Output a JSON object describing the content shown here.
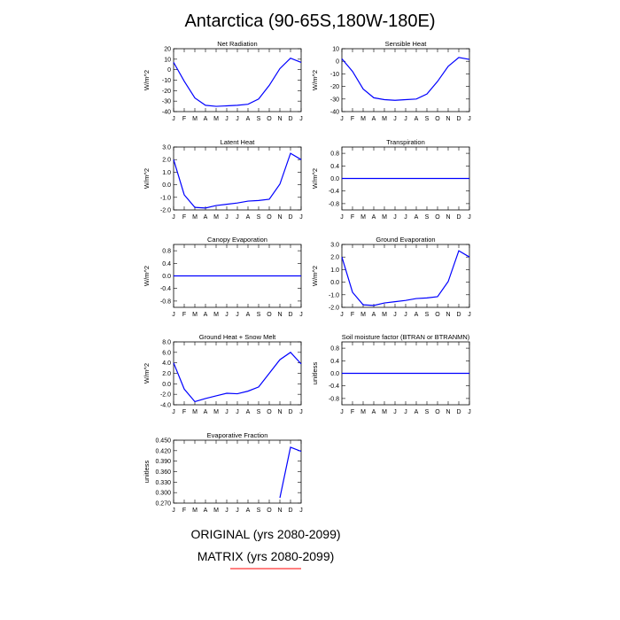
{
  "figure": {
    "title": "Antarctica (90-65S,180W-180E)",
    "legend": [
      {
        "label": "ORIGINAL (yrs 2080-2099)",
        "color": "#000000"
      },
      {
        "label": "MATRIX (yrs 2080-2099)",
        "color": "#ff0000"
      }
    ]
  },
  "months": [
    "J",
    "F",
    "M",
    "A",
    "M",
    "J",
    "J",
    "A",
    "S",
    "O",
    "N",
    "D",
    "J"
  ],
  "chart_data": [
    {
      "type": "line",
      "title": "Net Radiation",
      "ylabel": "W/m^2",
      "ylim": [
        -40,
        20
      ],
      "yticks": [
        20,
        10,
        0,
        -10,
        -20,
        -30,
        -40
      ],
      "yticklabels": [
        "20",
        "10",
        "0",
        "-10",
        "-20",
        "-30",
        "-40"
      ],
      "series": [
        {
          "color": "#0000ff",
          "values": [
            7,
            -11,
            -27,
            -34,
            -35,
            -34.5,
            -34,
            -33,
            -28,
            -15,
            1,
            11,
            7
          ]
        }
      ]
    },
    {
      "type": "line",
      "title": "Sensible Heat",
      "ylabel": "W/m^2",
      "ylim": [
        -40,
        10
      ],
      "yticks": [
        10,
        0,
        -10,
        -20,
        -30,
        -40
      ],
      "yticklabels": [
        "10",
        "0",
        "-10",
        "-20",
        "-30",
        "-40"
      ],
      "series": [
        {
          "color": "#0000ff",
          "values": [
            2,
            -8,
            -22,
            -29,
            -30.5,
            -31,
            -30.5,
            -30,
            -26,
            -16,
            -4,
            3,
            1.5
          ]
        }
      ]
    },
    {
      "type": "line",
      "title": "Latent Heat",
      "ylabel": "W/m^2",
      "ylim": [
        -2,
        3
      ],
      "yticks": [
        3,
        2,
        1,
        0,
        -1,
        -2
      ],
      "yticklabels": [
        "3.0",
        "2.0",
        "1.0",
        "0.0",
        "-1.0",
        "-2.0"
      ],
      "series": [
        {
          "color": "#0000ff",
          "values": [
            2.0,
            -0.8,
            -1.8,
            -1.85,
            -1.65,
            -1.55,
            -1.45,
            -1.3,
            -1.25,
            -1.15,
            0.05,
            2.5,
            2.0
          ]
        }
      ]
    },
    {
      "type": "line",
      "title": "Transpiration",
      "ylabel": "W/m^2",
      "ylim": [
        -1,
        1
      ],
      "yticks": [
        0.8,
        0.4,
        0,
        -0.4,
        -0.8
      ],
      "yticklabels": [
        "0.8",
        "0.4",
        "0.0",
        "-0.4",
        "-0.8"
      ],
      "series": [
        {
          "color": "#0000ff",
          "values": [
            0,
            0,
            0,
            0,
            0,
            0,
            0,
            0,
            0,
            0,
            0,
            0,
            0
          ]
        }
      ]
    },
    {
      "type": "line",
      "title": "Canopy Evaporation",
      "ylabel": "W/m^2",
      "ylim": [
        -1,
        1
      ],
      "yticks": [
        0.8,
        0.4,
        0,
        -0.4,
        -0.8
      ],
      "yticklabels": [
        "0.8",
        "0.4",
        "0.0",
        "-0.4",
        "-0.8"
      ],
      "series": [
        {
          "color": "#0000ff",
          "values": [
            0,
            0,
            0,
            0,
            0,
            0,
            0,
            0,
            0,
            0,
            0,
            0,
            0
          ]
        }
      ]
    },
    {
      "type": "line",
      "title": "Ground Evaporation",
      "ylabel": "W/m^2",
      "ylim": [
        -2,
        3
      ],
      "yticks": [
        3,
        2,
        1,
        0,
        -1,
        -2
      ],
      "yticklabels": [
        "3.0",
        "2.0",
        "1.0",
        "0.0",
        "-1.0",
        "-2.0"
      ],
      "series": [
        {
          "color": "#0000ff",
          "values": [
            2.0,
            -0.8,
            -1.8,
            -1.85,
            -1.65,
            -1.55,
            -1.45,
            -1.3,
            -1.25,
            -1.15,
            0.05,
            2.5,
            2.0
          ]
        }
      ]
    },
    {
      "type": "line",
      "title": "Ground Heat + Snow Melt",
      "ylabel": "W/m^2",
      "ylim": [
        -4,
        8
      ],
      "yticks": [
        8,
        6,
        4,
        2,
        0,
        -2,
        -4
      ],
      "yticklabels": [
        "8.0",
        "6.0",
        "4.0",
        "2.0",
        "0.0",
        "-2.0",
        "-4.0"
      ],
      "series": [
        {
          "color": "#0000ff",
          "values": [
            4.0,
            -1.0,
            -3.4,
            -2.8,
            -2.3,
            -1.8,
            -1.9,
            -1.4,
            -0.6,
            2.0,
            4.6,
            6.0,
            3.8
          ]
        }
      ]
    },
    {
      "type": "line",
      "title": "Soil moisture factor (BTRAN or BTRANMN)",
      "ylabel": "unitless",
      "ylim": [
        -1,
        1
      ],
      "yticks": [
        0.8,
        0.4,
        0,
        -0.4,
        -0.8
      ],
      "yticklabels": [
        "0.8",
        "0.4",
        "0.0",
        "-0.4",
        "-0.8"
      ],
      "series": [
        {
          "color": "#0000ff",
          "values": [
            0,
            0,
            0,
            0,
            0,
            0,
            0,
            0,
            0,
            0,
            0,
            0,
            0
          ]
        }
      ]
    },
    {
      "type": "line",
      "title": "Evaporative Fraction",
      "ylabel": "unitless",
      "ylim": [
        0.27,
        0.45
      ],
      "yticks": [
        0.45,
        0.42,
        0.39,
        0.36,
        0.33,
        0.3,
        0.27
      ],
      "yticklabels": [
        "0.450",
        "0.420",
        "0.390",
        "0.360",
        "0.330",
        "0.300",
        "0.270"
      ],
      "series": [
        {
          "color": "#0000ff",
          "values": [
            null,
            null,
            null,
            null,
            null,
            null,
            null,
            null,
            null,
            null,
            0.285,
            0.43,
            0.418
          ]
        }
      ]
    }
  ]
}
